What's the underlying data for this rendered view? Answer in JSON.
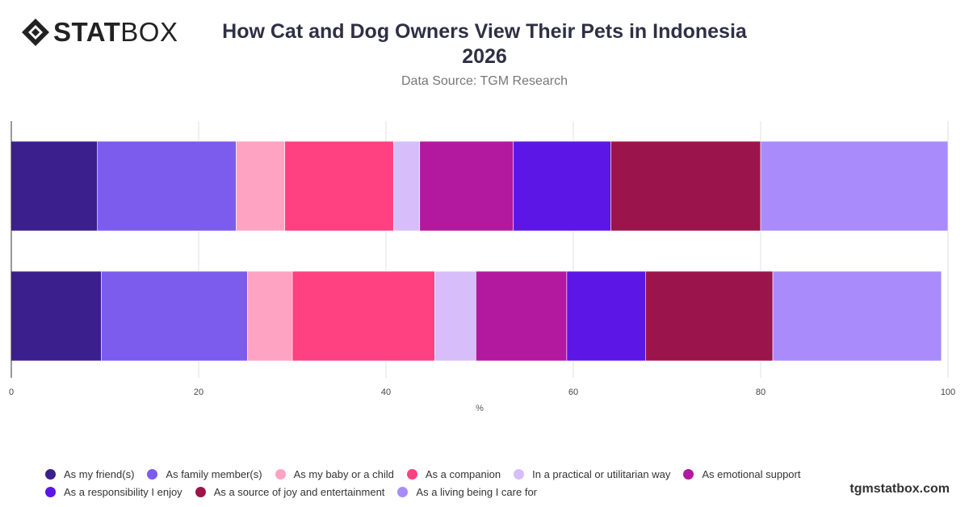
{
  "header": {
    "logo": {
      "stat": "STAT",
      "box": "BOX",
      "icon": "diamond-logo-icon"
    },
    "title_line1": "How Cat and Dog Owners View Their Pets in Indonesia",
    "title_line2": "2026",
    "subtitle": "Data Source: TGM Research"
  },
  "footer": {
    "site": "tgmstatbox.com"
  },
  "chart_data": {
    "type": "bar",
    "orientation": "horizontal",
    "stacked": true,
    "title": "How Cat and Dog Owners View Their Pets in Indonesia 2026",
    "subtitle": "Data Source: TGM Research",
    "xlabel": "%",
    "ylabel": "",
    "xlim": [
      0,
      100
    ],
    "xticks": [
      0,
      20,
      40,
      60,
      80,
      100
    ],
    "grid": true,
    "legend_position": "bottom",
    "categories": [
      "",
      ""
    ],
    "series": [
      {
        "name": "As my friend(s)",
        "color": "#3b1f8c",
        "values": [
          9.2,
          9.6
        ]
      },
      {
        "name": "As family member(s)",
        "color": "#7b5ced",
        "values": [
          14.8,
          15.6
        ]
      },
      {
        "name": "As my baby or a child",
        "color": "#ffa3c3",
        "values": [
          5.2,
          4.8
        ]
      },
      {
        "name": "As a companion",
        "color": "#ff4081",
        "values": [
          11.6,
          15.2
        ]
      },
      {
        "name": "In a practical or utilitarian way",
        "color": "#d7befa",
        "values": [
          2.8,
          4.4
        ]
      },
      {
        "name": "As emotional support",
        "color": "#b3199e",
        "values": [
          10.0,
          9.7
        ]
      },
      {
        "name": "As a responsibility I enjoy",
        "color": "#5c16e6",
        "values": [
          10.4,
          8.4
        ]
      },
      {
        "name": "As a source of joy and entertainment",
        "color": "#9c144c",
        "values": [
          16.0,
          13.6
        ]
      },
      {
        "name": "As a living being I care for",
        "color": "#a98bfc",
        "values": [
          20.0,
          18.0
        ]
      }
    ]
  }
}
